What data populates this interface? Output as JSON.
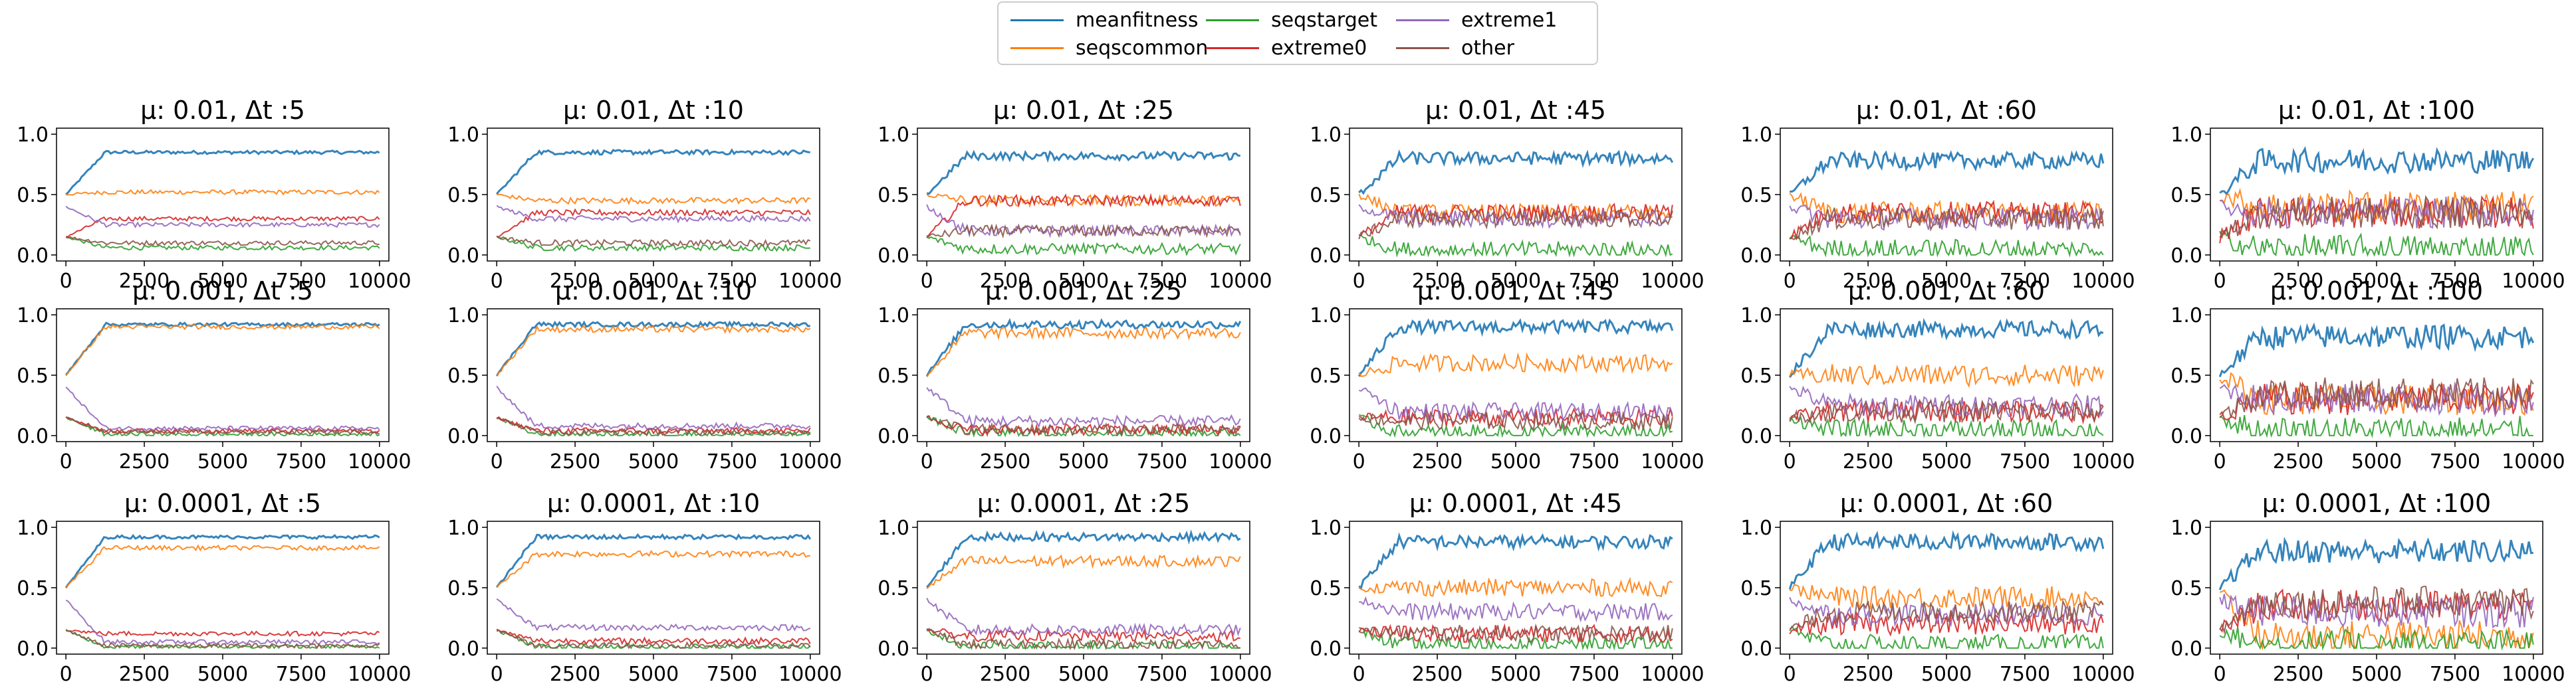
{
  "colors": {
    "meanfitness": "#1f77b4",
    "seqscommon": "#ff7f0e",
    "seqstarget": "#2ca02c",
    "extreme0": "#d62728",
    "extreme1": "#9467bd",
    "other": "#8c564b"
  },
  "legend": {
    "placement": "top-center",
    "entries": [
      "meanfitness",
      "seqscommon",
      "seqstarget",
      "extreme0",
      "extreme1",
      "other"
    ]
  },
  "chart_data": [
    {
      "type": "line",
      "title": "μ: 0.01, Δt :5",
      "xlim": [
        0,
        10000
      ],
      "ylim": [
        0,
        1
      ],
      "xticks": [
        "0",
        "2500",
        "5000",
        "7500",
        "10000"
      ],
      "yticks": [
        "0.0",
        "0.5",
        "1.0"
      ],
      "series": [
        {
          "name": "meanfitness",
          "values": [
            0.85
          ]
        },
        {
          "name": "seqscommon",
          "values": [
            0.52
          ]
        },
        {
          "name": "seqstarget",
          "values": [
            0.06
          ]
        },
        {
          "name": "extreme0",
          "values": [
            0.3
          ]
        },
        {
          "name": "extreme1",
          "values": [
            0.25
          ]
        },
        {
          "name": "other",
          "values": [
            0.1
          ]
        }
      ]
    },
    {
      "type": "line",
      "title": "μ: 0.01, Δt :10",
      "xlim": [
        0,
        10000
      ],
      "ylim": [
        0,
        1
      ],
      "xticks": [
        "0",
        "2500",
        "5000",
        "7500",
        "10000"
      ],
      "yticks": [
        "0.0",
        "0.5",
        "1.0"
      ],
      "series": [
        {
          "name": "meanfitness",
          "values": [
            0.85
          ]
        },
        {
          "name": "seqscommon",
          "values": [
            0.45
          ]
        },
        {
          "name": "seqstarget",
          "values": [
            0.06
          ]
        },
        {
          "name": "extreme0",
          "values": [
            0.35
          ]
        },
        {
          "name": "extreme1",
          "values": [
            0.3
          ]
        },
        {
          "name": "other",
          "values": [
            0.1
          ]
        }
      ]
    },
    {
      "type": "line",
      "title": "μ: 0.01, Δt :25",
      "xlim": [
        0,
        10000
      ],
      "ylim": [
        0,
        1
      ],
      "xticks": [
        "0",
        "2500",
        "5000",
        "7500",
        "10000"
      ],
      "yticks": [
        "0.0",
        "0.5",
        "1.0"
      ],
      "series": [
        {
          "name": "meanfitness",
          "values": [
            0.82
          ]
        },
        {
          "name": "seqscommon",
          "values": [
            0.45
          ]
        },
        {
          "name": "seqstarget",
          "values": [
            0.05
          ]
        },
        {
          "name": "extreme0",
          "values": [
            0.45
          ]
        },
        {
          "name": "extreme1",
          "values": [
            0.2
          ]
        },
        {
          "name": "other",
          "values": [
            0.2
          ]
        }
      ]
    },
    {
      "type": "line",
      "title": "μ: 0.01, Δt :45",
      "xlim": [
        0,
        10000
      ],
      "ylim": [
        0,
        1
      ],
      "xticks": [
        "0",
        "2500",
        "5000",
        "7500",
        "10000"
      ],
      "yticks": [
        "0.0",
        "0.5",
        "1.0"
      ],
      "series": [
        {
          "name": "meanfitness",
          "values": [
            0.8
          ]
        },
        {
          "name": "seqscommon",
          "values": [
            0.35
          ]
        },
        {
          "name": "seqstarget",
          "values": [
            0.04
          ]
        },
        {
          "name": "extreme0",
          "values": [
            0.35
          ]
        },
        {
          "name": "extreme1",
          "values": [
            0.3
          ]
        },
        {
          "name": "other",
          "values": [
            0.3
          ]
        }
      ]
    },
    {
      "type": "line",
      "title": "μ: 0.01, Δt :60",
      "xlim": [
        0,
        10000
      ],
      "ylim": [
        0,
        1
      ],
      "xticks": [
        "0",
        "2500",
        "5000",
        "7500",
        "10000"
      ],
      "yticks": [
        "0.0",
        "0.5",
        "1.0"
      ],
      "series": [
        {
          "name": "meanfitness",
          "values": [
            0.78
          ]
        },
        {
          "name": "seqscommon",
          "values": [
            0.35
          ]
        },
        {
          "name": "seqstarget",
          "values": [
            0.04
          ]
        },
        {
          "name": "extreme0",
          "values": [
            0.35
          ]
        },
        {
          "name": "extreme1",
          "values": [
            0.3
          ]
        },
        {
          "name": "other",
          "values": [
            0.3
          ]
        }
      ]
    },
    {
      "type": "line",
      "title": "μ: 0.01, Δt :100",
      "xlim": [
        0,
        10000
      ],
      "ylim": [
        0,
        1
      ],
      "xticks": [
        "0",
        "2500",
        "5000",
        "7500",
        "10000"
      ],
      "yticks": [
        "0.0",
        "0.5",
        "1.0"
      ],
      "series": [
        {
          "name": "meanfitness",
          "values": [
            0.78
          ]
        },
        {
          "name": "seqscommon",
          "values": [
            0.4
          ]
        },
        {
          "name": "seqstarget",
          "values": [
            0.04
          ]
        },
        {
          "name": "extreme0",
          "values": [
            0.35
          ]
        },
        {
          "name": "extreme1",
          "values": [
            0.35
          ]
        },
        {
          "name": "other",
          "values": [
            0.35
          ]
        }
      ]
    },
    {
      "type": "line",
      "title": "μ: 0.001, Δt :5",
      "xlim": [
        0,
        10000
      ],
      "ylim": [
        0,
        1
      ],
      "xticks": [
        "0",
        "2500",
        "5000",
        "7500",
        "10000"
      ],
      "yticks": [
        "0.0",
        "0.5",
        "1.0"
      ],
      "series": [
        {
          "name": "meanfitness",
          "values": [
            0.92
          ]
        },
        {
          "name": "seqscommon",
          "values": [
            0.9
          ]
        },
        {
          "name": "seqstarget",
          "values": [
            0.01
          ]
        },
        {
          "name": "extreme0",
          "values": [
            0.04
          ]
        },
        {
          "name": "extreme1",
          "values": [
            0.06
          ]
        },
        {
          "name": "other",
          "values": [
            0.03
          ]
        }
      ]
    },
    {
      "type": "line",
      "title": "μ: 0.001, Δt :10",
      "xlim": [
        0,
        10000
      ],
      "ylim": [
        0,
        1
      ],
      "xticks": [
        "0",
        "2500",
        "5000",
        "7500",
        "10000"
      ],
      "yticks": [
        "0.0",
        "0.5",
        "1.0"
      ],
      "series": [
        {
          "name": "meanfitness",
          "values": [
            0.92
          ]
        },
        {
          "name": "seqscommon",
          "values": [
            0.88
          ]
        },
        {
          "name": "seqstarget",
          "values": [
            0.01
          ]
        },
        {
          "name": "extreme0",
          "values": [
            0.04
          ]
        },
        {
          "name": "extreme1",
          "values": [
            0.08
          ]
        },
        {
          "name": "other",
          "values": [
            0.03
          ]
        }
      ]
    },
    {
      "type": "line",
      "title": "μ: 0.001, Δt :25",
      "xlim": [
        0,
        10000
      ],
      "ylim": [
        0,
        1
      ],
      "xticks": [
        "0",
        "2500",
        "5000",
        "7500",
        "10000"
      ],
      "yticks": [
        "0.0",
        "0.5",
        "1.0"
      ],
      "series": [
        {
          "name": "meanfitness",
          "values": [
            0.92
          ]
        },
        {
          "name": "seqscommon",
          "values": [
            0.85
          ]
        },
        {
          "name": "seqstarget",
          "values": [
            0.02
          ]
        },
        {
          "name": "extreme0",
          "values": [
            0.05
          ]
        },
        {
          "name": "extreme1",
          "values": [
            0.12
          ]
        },
        {
          "name": "other",
          "values": [
            0.05
          ]
        }
      ]
    },
    {
      "type": "line",
      "title": "μ: 0.001, Δt :45",
      "xlim": [
        0,
        10000
      ],
      "ylim": [
        0,
        1
      ],
      "xticks": [
        "0",
        "2500",
        "5000",
        "7500",
        "10000"
      ],
      "yticks": [
        "0.0",
        "0.5",
        "1.0"
      ],
      "series": [
        {
          "name": "meanfitness",
          "values": [
            0.9
          ]
        },
        {
          "name": "seqscommon",
          "values": [
            0.6
          ]
        },
        {
          "name": "seqstarget",
          "values": [
            0.02
          ]
        },
        {
          "name": "extreme0",
          "values": [
            0.15
          ]
        },
        {
          "name": "extreme1",
          "values": [
            0.2
          ]
        },
        {
          "name": "other",
          "values": [
            0.12
          ]
        }
      ]
    },
    {
      "type": "line",
      "title": "μ: 0.001, Δt :60",
      "xlim": [
        0,
        10000
      ],
      "ylim": [
        0,
        1
      ],
      "xticks": [
        "0",
        "2500",
        "5000",
        "7500",
        "10000"
      ],
      "yticks": [
        "0.0",
        "0.5",
        "1.0"
      ],
      "series": [
        {
          "name": "meanfitness",
          "values": [
            0.88
          ]
        },
        {
          "name": "seqscommon",
          "values": [
            0.5
          ]
        },
        {
          "name": "seqstarget",
          "values": [
            0.04
          ]
        },
        {
          "name": "extreme0",
          "values": [
            0.2
          ]
        },
        {
          "name": "extreme1",
          "values": [
            0.25
          ]
        },
        {
          "name": "other",
          "values": [
            0.2
          ]
        }
      ]
    },
    {
      "type": "line",
      "title": "μ: 0.001, Δt :100",
      "xlim": [
        0,
        10000
      ],
      "ylim": [
        0,
        1
      ],
      "xticks": [
        "0",
        "2500",
        "5000",
        "7500",
        "10000"
      ],
      "yticks": [
        "0.0",
        "0.5",
        "1.0"
      ],
      "series": [
        {
          "name": "meanfitness",
          "values": [
            0.82
          ]
        },
        {
          "name": "seqscommon",
          "values": [
            0.3
          ]
        },
        {
          "name": "seqstarget",
          "values": [
            0.03
          ]
        },
        {
          "name": "extreme0",
          "values": [
            0.3
          ]
        },
        {
          "name": "extreme1",
          "values": [
            0.3
          ]
        },
        {
          "name": "other",
          "values": [
            0.35
          ]
        }
      ]
    },
    {
      "type": "line",
      "title": "μ: 0.0001, Δt :5",
      "xlim": [
        0,
        10000
      ],
      "ylim": [
        0,
        1
      ],
      "xticks": [
        "0",
        "2500",
        "5000",
        "7500",
        "10000"
      ],
      "yticks": [
        "0.0",
        "0.5",
        "1.0"
      ],
      "series": [
        {
          "name": "meanfitness",
          "values": [
            0.92
          ]
        },
        {
          "name": "seqscommon",
          "values": [
            0.83
          ]
        },
        {
          "name": "seqstarget",
          "values": [
            0.01
          ]
        },
        {
          "name": "extreme0",
          "values": [
            0.12
          ]
        },
        {
          "name": "extreme1",
          "values": [
            0.05
          ]
        },
        {
          "name": "other",
          "values": [
            0.02
          ]
        }
      ]
    },
    {
      "type": "line",
      "title": "μ: 0.0001, Δt :10",
      "xlim": [
        0,
        10000
      ],
      "ylim": [
        0,
        1
      ],
      "xticks": [
        "0",
        "2500",
        "5000",
        "7500",
        "10000"
      ],
      "yticks": [
        "0.0",
        "0.5",
        "1.0"
      ],
      "series": [
        {
          "name": "meanfitness",
          "values": [
            0.92
          ]
        },
        {
          "name": "seqscommon",
          "values": [
            0.78
          ]
        },
        {
          "name": "seqstarget",
          "values": [
            0.01
          ]
        },
        {
          "name": "extreme0",
          "values": [
            0.06
          ]
        },
        {
          "name": "extreme1",
          "values": [
            0.17
          ]
        },
        {
          "name": "other",
          "values": [
            0.02
          ]
        }
      ]
    },
    {
      "type": "line",
      "title": "μ: 0.0001, Δt :25",
      "xlim": [
        0,
        10000
      ],
      "ylim": [
        0,
        1
      ],
      "xticks": [
        "0",
        "2500",
        "5000",
        "7500",
        "10000"
      ],
      "yticks": [
        "0.0",
        "0.5",
        "1.0"
      ],
      "series": [
        {
          "name": "meanfitness",
          "values": [
            0.92
          ]
        },
        {
          "name": "seqscommon",
          "values": [
            0.72
          ]
        },
        {
          "name": "seqstarget",
          "values": [
            0.01
          ]
        },
        {
          "name": "extreme0",
          "values": [
            0.1
          ]
        },
        {
          "name": "extreme1",
          "values": [
            0.15
          ]
        },
        {
          "name": "other",
          "values": [
            0.03
          ]
        }
      ]
    },
    {
      "type": "line",
      "title": "μ: 0.0001, Δt :45",
      "xlim": [
        0,
        10000
      ],
      "ylim": [
        0,
        1
      ],
      "xticks": [
        "0",
        "2500",
        "5000",
        "7500",
        "10000"
      ],
      "yticks": [
        "0.0",
        "0.5",
        "1.0"
      ],
      "series": [
        {
          "name": "meanfitness",
          "values": [
            0.88
          ]
        },
        {
          "name": "seqscommon",
          "values": [
            0.5
          ]
        },
        {
          "name": "seqstarget",
          "values": [
            0.02
          ]
        },
        {
          "name": "extreme0",
          "values": [
            0.12
          ]
        },
        {
          "name": "extreme1",
          "values": [
            0.3
          ]
        },
        {
          "name": "other",
          "values": [
            0.12
          ]
        }
      ]
    },
    {
      "type": "line",
      "title": "μ: 0.0001, Δt :60",
      "xlim": [
        0,
        10000
      ],
      "ylim": [
        0,
        1
      ],
      "xticks": [
        "0",
        "2500",
        "5000",
        "7500",
        "10000"
      ],
      "yticks": [
        "0.0",
        "0.5",
        "1.0"
      ],
      "series": [
        {
          "name": "meanfitness",
          "values": [
            0.88
          ]
        },
        {
          "name": "seqscommon",
          "values": [
            0.42
          ]
        },
        {
          "name": "seqstarget",
          "values": [
            0.02
          ]
        },
        {
          "name": "extreme0",
          "values": [
            0.2
          ]
        },
        {
          "name": "extreme1",
          "values": [
            0.28
          ]
        },
        {
          "name": "other",
          "values": [
            0.3
          ]
        }
      ]
    },
    {
      "type": "line",
      "title": "μ: 0.0001, Δt :100",
      "xlim": [
        0,
        10000
      ],
      "ylim": [
        0,
        1
      ],
      "xticks": [
        "0",
        "2500",
        "5000",
        "7500",
        "10000"
      ],
      "yticks": [
        "0.0",
        "0.5",
        "1.0"
      ],
      "series": [
        {
          "name": "meanfitness",
          "values": [
            0.8
          ]
        },
        {
          "name": "seqscommon",
          "values": [
            0.1
          ]
        },
        {
          "name": "seqstarget",
          "values": [
            0.02
          ]
        },
        {
          "name": "extreme0",
          "values": [
            0.35
          ]
        },
        {
          "name": "extreme1",
          "values": [
            0.3
          ]
        },
        {
          "name": "other",
          "values": [
            0.38
          ]
        }
      ]
    }
  ]
}
